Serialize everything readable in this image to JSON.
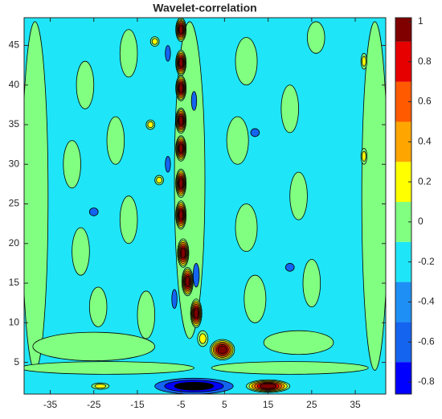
{
  "chart_data": {
    "type": "contour",
    "title": "Wavelet-correlation",
    "xlim": [
      -41,
      42
    ],
    "ylim": [
      1,
      48.5
    ],
    "xticks": [
      -35,
      -25,
      -15,
      -5,
      5,
      15,
      25,
      35
    ],
    "yticks": [
      5,
      10,
      15,
      20,
      25,
      30,
      35,
      40,
      45
    ],
    "colorbar": {
      "clim": [
        -0.86,
        1.02
      ],
      "boundaries": [
        -0.7,
        -0.5,
        -0.3,
        -0.1,
        0.1,
        0.3,
        0.5,
        0.7,
        0.9
      ],
      "colors": [
        "#0000ff",
        "#1464f0",
        "#1e90f5",
        "#1ee6f8",
        "#80ff80",
        "#ffff00",
        "#ffa500",
        "#ff5a00",
        "#e60000",
        "#800000"
      ],
      "ticks": [
        -0.8,
        -0.6,
        -0.4,
        -0.2,
        0,
        0.2,
        0.4,
        0.6,
        0.8,
        1
      ]
    },
    "background": -0.2,
    "features": [
      {
        "x": -38.5,
        "y": 26,
        "rx": 3,
        "ry": 22,
        "value": 0
      },
      {
        "x": 39.5,
        "y": 26,
        "rx": 3,
        "ry": 22,
        "value": 0
      },
      {
        "x": -22,
        "y": 4.3,
        "rx": 20,
        "ry": 0.8,
        "value": 0
      },
      {
        "x": 20,
        "y": 4.3,
        "rx": 18,
        "ry": 0.8,
        "value": 0
      },
      {
        "x": -25,
        "y": 7,
        "rx": 14,
        "ry": 1.8,
        "value": 0
      },
      {
        "x": 22,
        "y": 7.5,
        "rx": 8,
        "ry": 1.5,
        "value": 0
      },
      {
        "x": -24,
        "y": 12,
        "rx": 2,
        "ry": 2.5,
        "value": 0
      },
      {
        "x": -13,
        "y": 11,
        "rx": 2,
        "ry": 3,
        "value": 0
      },
      {
        "x": 12,
        "y": 13,
        "rx": 2.5,
        "ry": 3,
        "value": 0
      },
      {
        "x": 25,
        "y": 15,
        "rx": 2,
        "ry": 3,
        "value": 0
      },
      {
        "x": -28,
        "y": 19,
        "rx": 2,
        "ry": 3,
        "value": 0
      },
      {
        "x": -17,
        "y": 23,
        "rx": 2,
        "ry": 3,
        "value": 0
      },
      {
        "x": 10,
        "y": 22,
        "rx": 2.5,
        "ry": 3,
        "value": 0
      },
      {
        "x": 22,
        "y": 26,
        "rx": 2,
        "ry": 3,
        "value": 0
      },
      {
        "x": -30,
        "y": 30,
        "rx": 2,
        "ry": 3,
        "value": 0
      },
      {
        "x": -20,
        "y": 33,
        "rx": 2,
        "ry": 3,
        "value": 0
      },
      {
        "x": 8,
        "y": 33,
        "rx": 2.5,
        "ry": 3,
        "value": 0
      },
      {
        "x": 20,
        "y": 37,
        "rx": 2,
        "ry": 3,
        "value": 0
      },
      {
        "x": -27,
        "y": 40,
        "rx": 2,
        "ry": 3,
        "value": 0
      },
      {
        "x": -17,
        "y": 44,
        "rx": 2,
        "ry": 3,
        "value": 0
      },
      {
        "x": 10,
        "y": 43,
        "rx": 2.5,
        "ry": 3,
        "value": 0
      },
      {
        "x": 26,
        "y": 46,
        "rx": 2,
        "ry": 2,
        "value": 0
      },
      {
        "x": -3,
        "y": 28,
        "rx": 3.5,
        "ry": 20,
        "value": 0
      },
      {
        "x": -5,
        "y": 47,
        "rx": 1.2,
        "ry": 1.5,
        "value": 0.95
      },
      {
        "x": -5,
        "y": 42.8,
        "rx": 1.2,
        "ry": 1.6,
        "value": 0.95
      },
      {
        "x": -5,
        "y": 39.6,
        "rx": 1.2,
        "ry": 1.6,
        "value": 0.95
      },
      {
        "x": -5,
        "y": 35.5,
        "rx": 1.2,
        "ry": 1.6,
        "value": 0.95
      },
      {
        "x": -5,
        "y": 32,
        "rx": 1.2,
        "ry": 1.6,
        "value": 0.95
      },
      {
        "x": -5,
        "y": 27.6,
        "rx": 1.2,
        "ry": 1.8,
        "value": 0.95
      },
      {
        "x": -5,
        "y": 23.6,
        "rx": 1.2,
        "ry": 1.8,
        "value": 0.95
      },
      {
        "x": -4.5,
        "y": 18.8,
        "rx": 1.3,
        "ry": 1.8,
        "value": 0.95
      },
      {
        "x": -3.5,
        "y": 15.2,
        "rx": 1.3,
        "ry": 1.8,
        "value": 0.95
      },
      {
        "x": -1.5,
        "y": 11.2,
        "rx": 1.3,
        "ry": 1.8,
        "value": 0.95
      },
      {
        "x": 4.5,
        "y": 6.6,
        "rx": 2.8,
        "ry": 1.3,
        "value": 0.95
      },
      {
        "x": -8,
        "y": 44,
        "rx": 0.6,
        "ry": 1,
        "value": -0.4
      },
      {
        "x": -2,
        "y": 38,
        "rx": 0.6,
        "ry": 1.2,
        "value": -0.4
      },
      {
        "x": -8,
        "y": 30,
        "rx": 0.6,
        "ry": 1,
        "value": -0.4
      },
      {
        "x": -1.5,
        "y": 16,
        "rx": 0.7,
        "ry": 1.5,
        "value": -0.4
      },
      {
        "x": -6.5,
        "y": 13,
        "rx": 0.6,
        "ry": 1.2,
        "value": -0.4
      },
      {
        "x": -25,
        "y": 24,
        "rx": 1,
        "ry": 0.5,
        "value": -0.4
      },
      {
        "x": 20,
        "y": 17,
        "rx": 1,
        "ry": 0.5,
        "value": -0.4
      },
      {
        "x": 12,
        "y": 34,
        "rx": 1,
        "ry": 0.5,
        "value": -0.4
      },
      {
        "x": -2,
        "y": 2,
        "rx": 9,
        "ry": 1,
        "value": -0.8
      },
      {
        "x": 15,
        "y": 2,
        "rx": 5,
        "ry": 0.8,
        "value": 0.95
      },
      {
        "x": -23.5,
        "y": 2,
        "rx": 2,
        "ry": 0.4,
        "value": 0.2
      },
      {
        "x": -11,
        "y": 45.5,
        "rx": 1,
        "ry": 0.6,
        "value": 0.2
      },
      {
        "x": -12,
        "y": 35,
        "rx": 1,
        "ry": 0.6,
        "value": 0.2
      },
      {
        "x": -10,
        "y": 28,
        "rx": 1,
        "ry": 0.6,
        "value": 0.2
      },
      {
        "x": 37,
        "y": 43,
        "rx": 0.7,
        "ry": 1,
        "value": 0.2
      },
      {
        "x": 37,
        "y": 31,
        "rx": 0.7,
        "ry": 1,
        "value": 0.2
      },
      {
        "x": 0,
        "y": 8,
        "rx": 1.2,
        "ry": 1,
        "value": 0.2
      }
    ]
  }
}
